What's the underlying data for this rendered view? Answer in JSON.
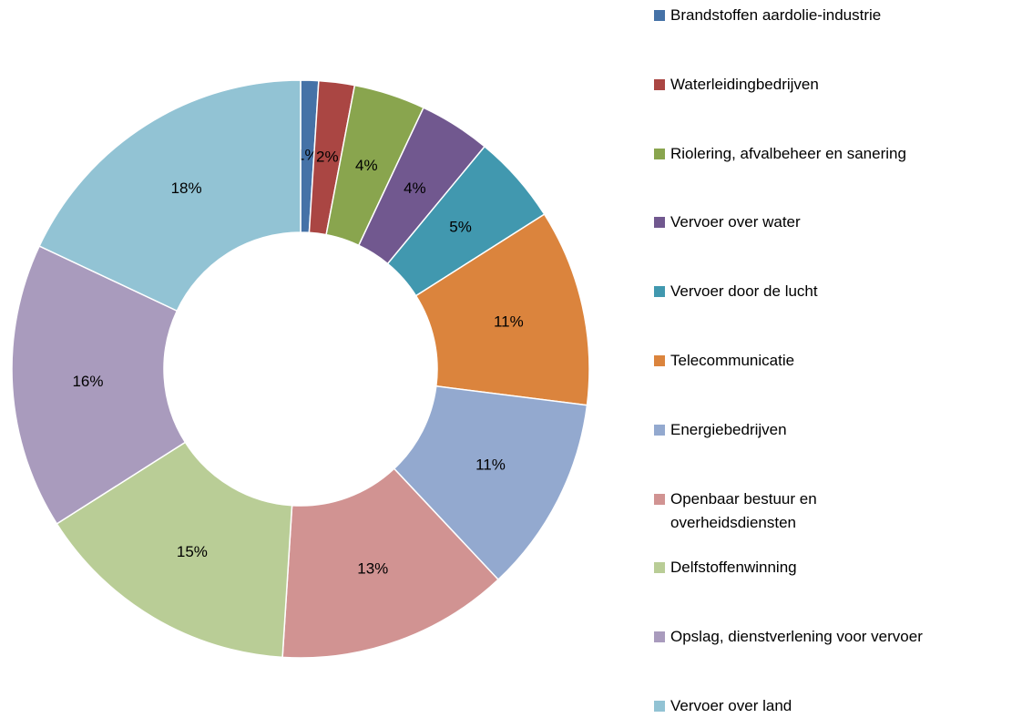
{
  "chart_data": {
    "type": "donut",
    "categories": [
      "Brandstoffen aardolie-industrie",
      "Waterleidingbedrijven",
      "Riolering, afvalbeheer en sanering",
      "Vervoer over water",
      "Vervoer door de lucht",
      "Telecommunicatie",
      "Energiebedrijven",
      "Openbaar bestuur en overheidsdiensten",
      "Delfstoffenwinning",
      "Opslag, dienstverlening voor vervoer",
      "Vervoer over land"
    ],
    "values": [
      1,
      2,
      4,
      4,
      5,
      11,
      11,
      13,
      15,
      16,
      18
    ],
    "value_labels": [
      "1%",
      "2%",
      "4%",
      "4%",
      "5%",
      "11%",
      "11%",
      "13%",
      "15%",
      "16%",
      "18%"
    ],
    "colors": [
      "#4572a7",
      "#aa4643",
      "#89a54e",
      "#71588f",
      "#4198af",
      "#db843d",
      "#93a9cf",
      "#d19392",
      "#b9cd96",
      "#a99bbd",
      "#92c3d4"
    ],
    "legend": "right"
  }
}
